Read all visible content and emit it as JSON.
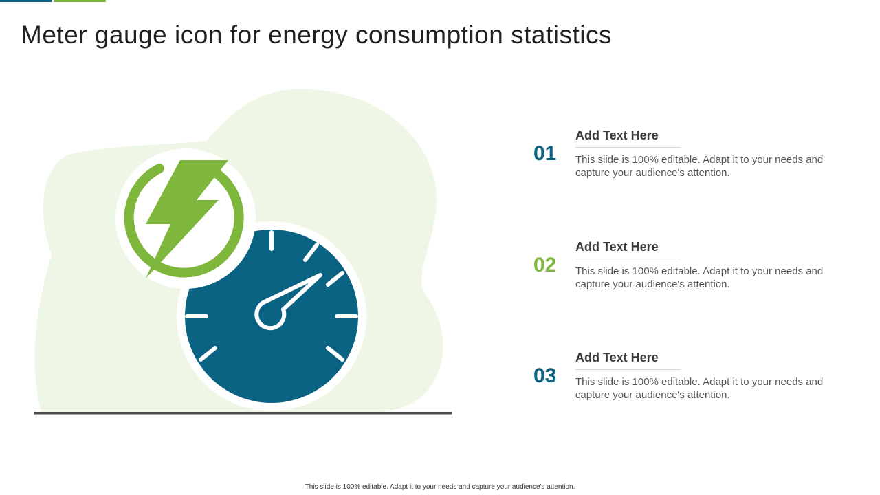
{
  "title": "Meter gauge icon for energy consumption statistics",
  "colors": {
    "teal": "#0b6384",
    "green": "#7fb63c",
    "blob": "#eef6e6",
    "ground": "#4d4d4d"
  },
  "icons": [
    "lightning-bolt-icon",
    "speedometer-gauge-icon"
  ],
  "items": [
    {
      "number": "01",
      "number_color": "#0b6384",
      "heading": "Add Text Here",
      "body": "This slide is 100% editable. Adapt it to your needs and capture your audience's attention."
    },
    {
      "number": "02",
      "number_color": "#7fb63c",
      "heading": "Add Text Here",
      "body": "This slide is 100% editable. Adapt it to your needs and capture your audience's attention."
    },
    {
      "number": "03",
      "number_color": "#0b6384",
      "heading": "Add Text Here",
      "body": "This slide is 100% editable. Adapt it to your needs and capture your audience's attention."
    }
  ],
  "footer": "This slide is 100% editable. Adapt it to your needs and capture your audience's attention."
}
